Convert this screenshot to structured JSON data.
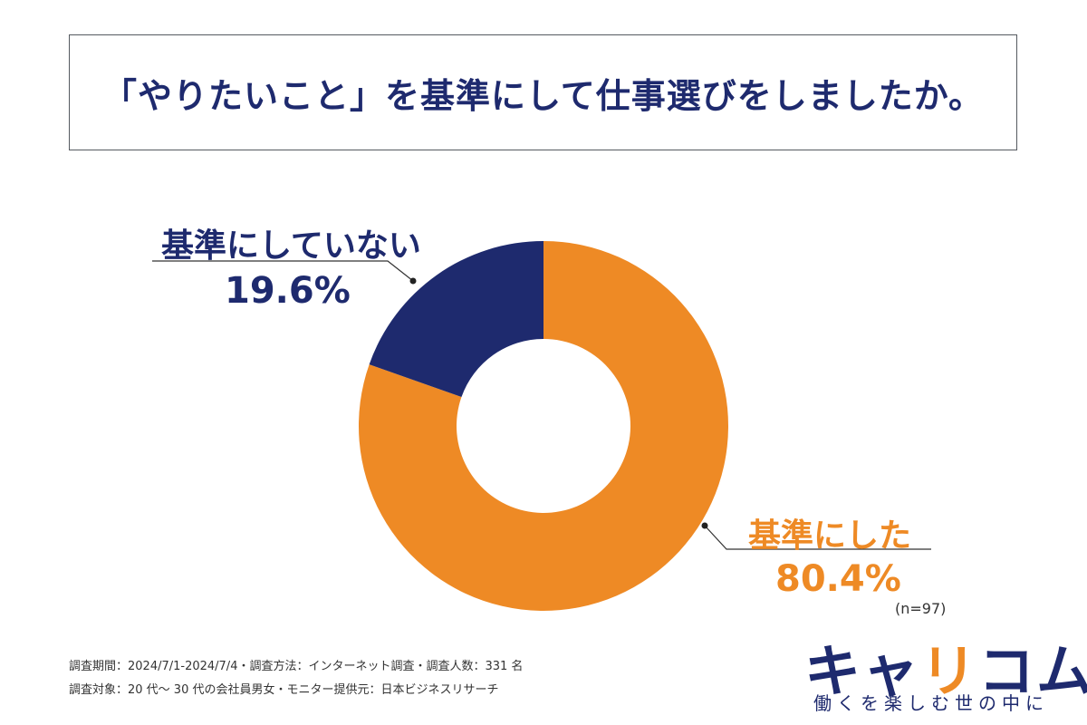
{
  "title": "「やりたいこと」を基準にして仕事選びをしましたか。",
  "chart_data": {
    "type": "pie",
    "title": "「やりたいこと」を基準にして仕事選びをしましたか。",
    "categories": [
      "基準にした",
      "基準にしていない"
    ],
    "values": [
      80.4,
      19.6
    ],
    "labels": [
      "80.4%",
      "19.6%"
    ],
    "colors": [
      "#ee8a25",
      "#1e2a6e"
    ],
    "n": "(n=97)"
  },
  "footnotes": [
    "調査期間：2024/7/1-2024/7/4・調査方法：インターネット調査・調査人数：331 名",
    "調査対象：20 代〜 30 代の会社員男女・モニター提供元：日本ビジネスリサーチ"
  ],
  "logo": {
    "pre": "キャ",
    "accent": "リ",
    "post": "コム",
    "tagline": "働くを楽しむ世の中に"
  }
}
